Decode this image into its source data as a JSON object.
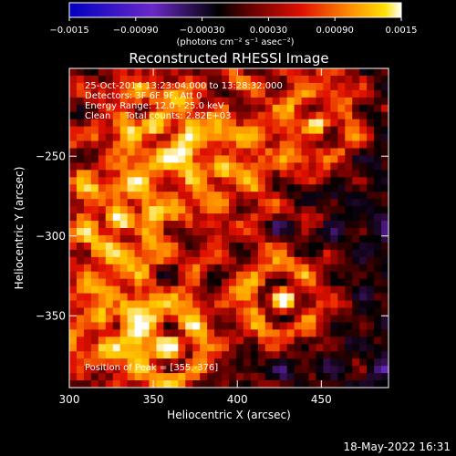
{
  "chart_data": {
    "type": "heatmap",
    "title": "Reconstructed RHESSI Image",
    "xlabel": "Heliocentric X (arcsec)",
    "ylabel": "Heliocentric Y (arcsec)",
    "xlim": [
      300,
      490
    ],
    "ylim": [
      -395,
      -195
    ],
    "xticks": [
      300,
      350,
      400,
      450
    ],
    "yticks": [
      -250,
      -300,
      -350
    ],
    "xtick_labels": [
      "300",
      "350",
      "400",
      "450"
    ],
    "ytick_labels": [
      "−250",
      "−300",
      "−350"
    ],
    "colorbar": {
      "range": [
        -0.0015,
        0.0015
      ],
      "ticks": [
        -0.0015,
        -0.0009,
        -0.0003,
        0.0003,
        0.0009,
        0.0015
      ],
      "tick_labels": [
        "−0.0015",
        "−0.00090",
        "−0.00030",
        "0.00030",
        "0.00090",
        "0.0015"
      ],
      "unit_text": "(photons cm⁻² s⁻¹ asec⁻²)"
    },
    "annotations": [
      "25-Oct-2014 13:23:04.000 to 13:28:32.000",
      "Detectors: 3F 6F 9F, Att 0",
      "Energy Range: 12.0 - 25.0 keV",
      "Clean     Total counts: 2.82E+03"
    ],
    "peak_label": "Position of Peak = [355,-376]",
    "peak": [
      355,
      -376
    ],
    "sources": [
      {
        "x": 428,
        "y": -340,
        "amp": 1.0
      },
      {
        "x": 360,
        "y": -370,
        "amp": 0.95
      },
      {
        "x": 330,
        "y": -290,
        "amp": 0.8
      },
      {
        "x": 352,
        "y": -230,
        "amp": 0.75
      },
      {
        "x": 448,
        "y": -230,
        "amp": 0.7
      },
      {
        "x": 392,
        "y": -258,
        "amp": 0.6
      },
      {
        "x": 318,
        "y": -352,
        "amp": 0.55
      }
    ],
    "grid": false,
    "colormap": [
      "#0000c0",
      "#6a28c8",
      "#2a0a3a",
      "#000000",
      "#6a0000",
      "#e01000",
      "#ff8000",
      "#ffd000",
      "#ffffff"
    ]
  },
  "footer_timestamp": "18-May-2022 16:31"
}
